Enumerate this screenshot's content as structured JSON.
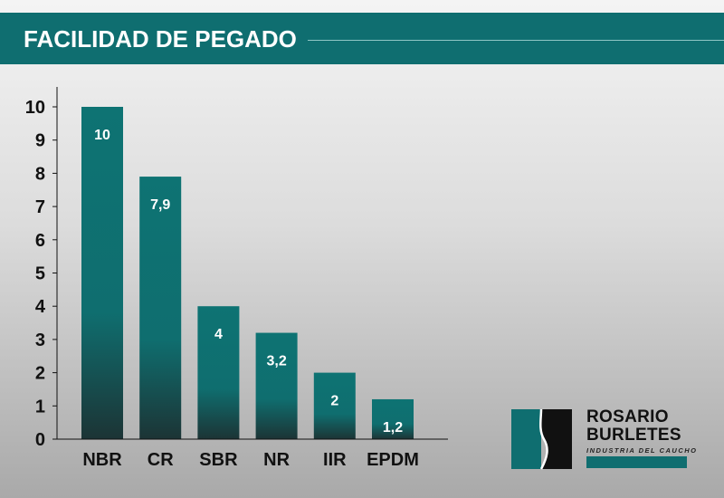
{
  "header": {
    "title": "FACILIDAD DE PEGADO"
  },
  "chart_data": {
    "type": "bar",
    "title": "FACILIDAD DE PEGADO",
    "categories": [
      "NBR",
      "CR",
      "SBR",
      "NR",
      "IIR",
      "EPDM"
    ],
    "values": [
      10,
      7.9,
      4,
      3.2,
      2,
      1.2
    ],
    "data_labels": [
      "10",
      "7,9",
      "4",
      "3,2",
      "2",
      "1,2"
    ],
    "yticks": [
      0,
      1,
      2,
      3,
      4,
      5,
      6,
      7,
      8,
      9,
      10
    ],
    "ylim": [
      0,
      10
    ],
    "grid": false,
    "legend": "none"
  },
  "logo": {
    "line1": "ROSARIO",
    "line2": "BURLETES",
    "tagline": "INDUSTRIA DEL CAUCHO"
  },
  "colors": {
    "header": "#0f6e70",
    "bar_top": "#0e7373",
    "bar_bottom": "#1c3435",
    "axis": "#111111"
  }
}
